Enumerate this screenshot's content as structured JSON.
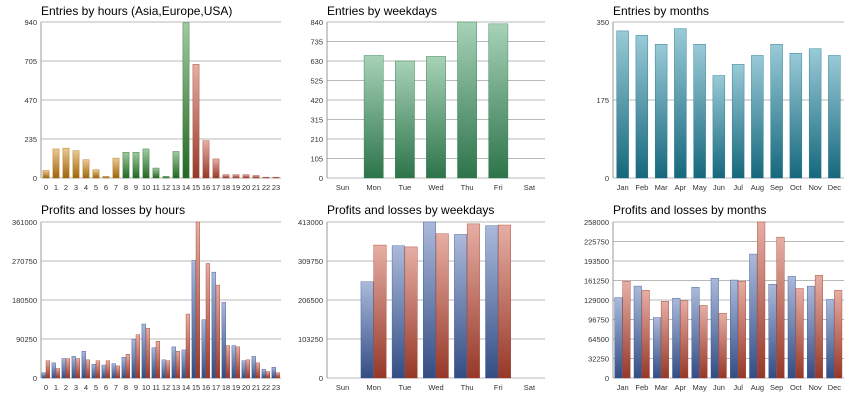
{
  "chart_data": [
    {
      "type": "bar",
      "title": "Entries by hours (Asia,Europe,USA)",
      "categories": [
        "0",
        "1",
        "2",
        "3",
        "4",
        "5",
        "6",
        "7",
        "8",
        "9",
        "10",
        "11",
        "12",
        "13",
        "14",
        "15",
        "16",
        "17",
        "18",
        "19",
        "20",
        "21",
        "22",
        "23"
      ],
      "values": [
        45,
        175,
        180,
        165,
        110,
        50,
        10,
        120,
        155,
        155,
        175,
        60,
        10,
        160,
        935,
        685,
        225,
        115,
        20,
        20,
        20,
        15,
        5,
        5
      ],
      "colors": [
        "#d4860f",
        "#d4860f",
        "#d4860f",
        "#d4860f",
        "#d4860f",
        "#d4860f",
        "#d4860f",
        "#d4860f",
        "#2f8a2f",
        "#2f8a2f",
        "#2f8a2f",
        "#2f8a2f",
        "#2f8a2f",
        "#2f8a2f",
        "#2f8a2f",
        "#c84a35",
        "#c84a35",
        "#c84a35",
        "#c84a35",
        "#c84a35",
        "#c84a35",
        "#c84a35",
        "#c84a35",
        "#c84a35"
      ],
      "ylim": [
        0,
        940
      ],
      "yticks": [
        "0",
        "235",
        "470",
        "705",
        "940"
      ]
    },
    {
      "type": "bar",
      "title": "Entries by weekdays",
      "categories": [
        "Sun",
        "Mon",
        "Tue",
        "Wed",
        "Thu",
        "Fri",
        "Sat"
      ],
      "values": [
        0,
        660,
        630,
        655,
        840,
        830,
        0
      ],
      "color": "#3c9a62",
      "ylim": [
        0,
        840
      ],
      "yticks": [
        "0",
        "105",
        "210",
        "315",
        "420",
        "525",
        "630",
        "735",
        "840"
      ]
    },
    {
      "type": "bar",
      "title": "Entries by months",
      "categories": [
        "Jan",
        "Feb",
        "Mar",
        "Apr",
        "May",
        "Jun",
        "Jul",
        "Aug",
        "Sep",
        "Oct",
        "Nov",
        "Dec"
      ],
      "values": [
        330,
        320,
        300,
        335,
        300,
        230,
        255,
        275,
        300,
        280,
        290,
        275
      ],
      "color": "#1d8aa6",
      "ylim": [
        0,
        350
      ],
      "yticks": [
        "0",
        "175",
        "350"
      ]
    },
    {
      "type": "bar",
      "title": "Profits and losses by hours",
      "categories": [
        "0",
        "1",
        "2",
        "3",
        "4",
        "5",
        "6",
        "7",
        "8",
        "9",
        "10",
        "11",
        "12",
        "13",
        "14",
        "15",
        "16",
        "17",
        "18",
        "19",
        "20",
        "21",
        "22",
        "23"
      ],
      "series": [
        {
          "values": [
            12000,
            35000,
            45000,
            50000,
            62000,
            32000,
            30000,
            33000,
            48000,
            90000,
            125000,
            70000,
            42000,
            72000,
            65000,
            272000,
            135000,
            245000,
            175000,
            75000,
            40000,
            50000,
            20000,
            25000
          ],
          "color": "#4466b0"
        },
        {
          "values": [
            40000,
            22000,
            45000,
            45000,
            42000,
            40000,
            40000,
            28000,
            55000,
            100000,
            115000,
            85000,
            40000,
            62000,
            148000,
            361000,
            265000,
            215000,
            75000,
            72000,
            42000,
            35000,
            15000,
            12000
          ],
          "color": "#c84a35"
        }
      ],
      "ylim": [
        0,
        361000
      ],
      "yticks": [
        "0",
        "90250",
        "180500",
        "270750",
        "361000"
      ]
    },
    {
      "type": "bar",
      "title": "Profits and losses by weekdays",
      "categories": [
        "Sun",
        "Mon",
        "Tue",
        "Wed",
        "Thu",
        "Fri",
        "Sat"
      ],
      "series": [
        {
          "values": [
            0,
            255000,
            350000,
            413000,
            380000,
            403000,
            0
          ],
          "color": "#4466b0"
        },
        {
          "values": [
            0,
            352000,
            347000,
            382000,
            408000,
            405000,
            0
          ],
          "color": "#c84a35"
        }
      ],
      "ylim": [
        0,
        413000
      ],
      "yticks": [
        "0",
        "103250",
        "206500",
        "309750",
        "413000"
      ]
    },
    {
      "type": "bar",
      "title": "Profits and losses by months",
      "categories": [
        "Jan",
        "Feb",
        "Mar",
        "Apr",
        "May",
        "Jun",
        "Jul",
        "Aug",
        "Sep",
        "Oct",
        "Nov",
        "Dec"
      ],
      "series": [
        {
          "values": [
            133000,
            152000,
            100000,
            132000,
            150000,
            165000,
            162000,
            205000,
            155000,
            168000,
            152000,
            130000
          ],
          "color": "#4466b0"
        },
        {
          "values": [
            160000,
            145000,
            127000,
            128000,
            120000,
            107000,
            160000,
            258000,
            233000,
            148000,
            170000,
            145000
          ],
          "color": "#c84a35"
        }
      ],
      "ylim": [
        0,
        258000
      ],
      "yticks": [
        "0",
        "32250",
        "64500",
        "96750",
        "129000",
        "161250",
        "193500",
        "225750",
        "258000"
      ]
    }
  ]
}
